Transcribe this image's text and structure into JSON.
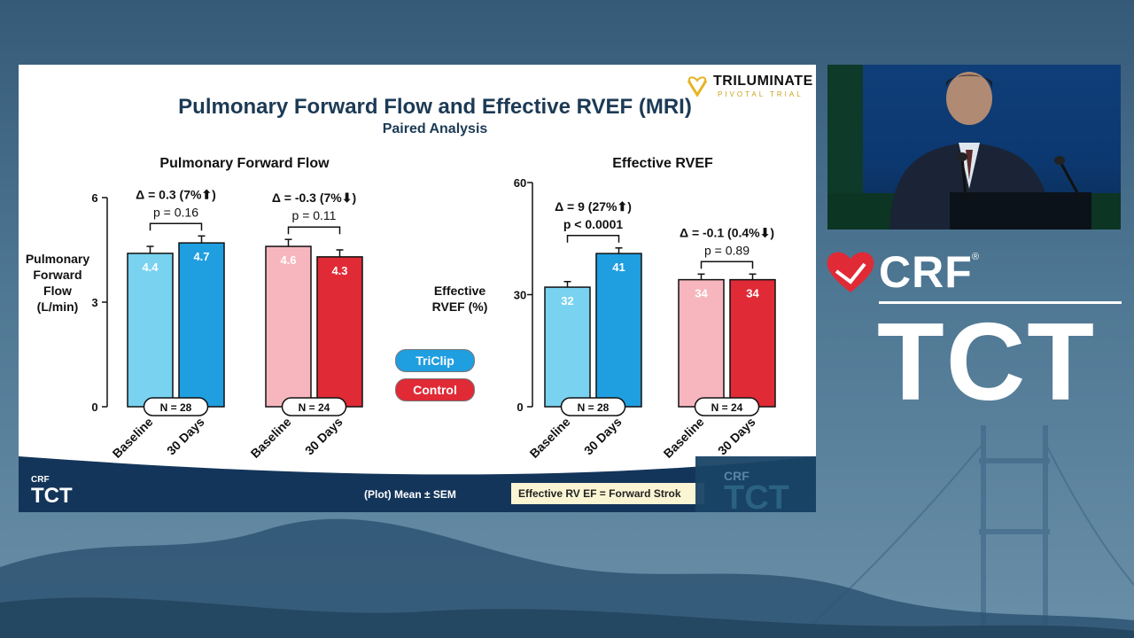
{
  "slide": {
    "title": "Pulmonary Forward Flow and Effective RVEF (MRI)",
    "subtitle": "Paired Analysis",
    "logo_main": "TRILUMINATE",
    "logo_sub": "PIVOTAL TRIAL",
    "legend": [
      {
        "name": "TriClip",
        "color": "#1f9ee0"
      },
      {
        "name": "Control",
        "color": "#e02a36"
      }
    ],
    "footer_note": "(Plot) Mean ± SEM",
    "footer_box": "Effective RV EF = Forward Strok",
    "footer_logo_crf": "CRF",
    "footer_logo_tct": "TCT",
    "corner_crf": "CRF",
    "corner_tct": "TCT"
  },
  "brand": {
    "crf": "CRF",
    "reg": "®",
    "tct": "TCT"
  },
  "colors": {
    "triclip_baseline": "#78d2f0",
    "triclip_30d": "#1f9ee0",
    "control_baseline": "#f7b6bd",
    "control_30d": "#e02a36",
    "title_navy": "#1c3a55",
    "footer_navy": "#14355a"
  },
  "chart_data": [
    {
      "type": "bar",
      "title": "Pulmonary Forward Flow",
      "ylabel": "Pulmonary Forward Flow (L/min)",
      "ylabel_lines": [
        "Pulmonary",
        "Forward",
        "Flow",
        "(L/min)"
      ],
      "ylim": [
        0,
        6
      ],
      "yticks": [
        0,
        3,
        6
      ],
      "categories": [
        "Baseline",
        "30 Days"
      ],
      "groups": [
        {
          "name": "TriClip",
          "n_label": "N = 28",
          "values": [
            4.4,
            4.7
          ],
          "sem": [
            0.2,
            0.2
          ],
          "labels": [
            "4.4",
            "4.7"
          ],
          "delta": "Δ = 0.3 (7%⬆)",
          "p": "p = 0.16"
        },
        {
          "name": "Control",
          "n_label": "N = 24",
          "values": [
            4.6,
            4.3
          ],
          "sem": [
            0.2,
            0.2
          ],
          "labels": [
            "4.6",
            "4.3"
          ],
          "delta": "Δ = -0.3 (7%⬇)",
          "p": "p = 0.11"
        }
      ]
    },
    {
      "type": "bar",
      "title": "Effective RVEF",
      "ylabel": "Effective RVEF (%)",
      "ylabel_lines": [
        "Effective",
        "RVEF (%)"
      ],
      "ylim": [
        0,
        60
      ],
      "yticks": [
        0,
        30,
        60
      ],
      "categories": [
        "Baseline",
        "30 Days"
      ],
      "groups": [
        {
          "name": "TriClip",
          "n_label": "N = 28",
          "values": [
            32,
            41
          ],
          "sem": [
            1.5,
            1.5
          ],
          "labels": [
            "32",
            "41"
          ],
          "delta": "Δ = 9 (27%⬆)",
          "p": "p < 0.0001"
        },
        {
          "name": "Control",
          "n_label": "N = 24",
          "values": [
            34,
            34
          ],
          "sem": [
            1.5,
            1.5
          ],
          "labels": [
            "34",
            "34"
          ],
          "delta": "Δ = -0.1 (0.4%⬇)",
          "p": "p = 0.89"
        }
      ]
    }
  ]
}
